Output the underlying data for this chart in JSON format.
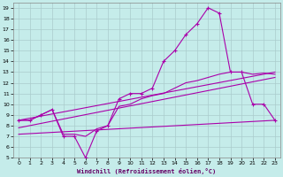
{
  "xlabel": "Windchill (Refroidissement éolien,°C)",
  "background_color": "#c5ecea",
  "grid_color": "#aacccc",
  "line_color": "#aa00aa",
  "xlim": [
    -0.5,
    23.5
  ],
  "ylim": [
    5,
    19.5
  ],
  "xticks": [
    0,
    1,
    2,
    3,
    4,
    5,
    6,
    7,
    8,
    9,
    10,
    11,
    12,
    13,
    14,
    15,
    16,
    17,
    18,
    19,
    20,
    21,
    22,
    23
  ],
  "yticks": [
    5,
    6,
    7,
    8,
    9,
    10,
    11,
    12,
    13,
    14,
    15,
    16,
    17,
    18,
    19
  ],
  "line1_x": [
    0,
    1,
    2,
    3,
    4,
    5,
    6,
    7,
    8,
    9,
    10,
    11,
    12,
    13,
    14,
    15,
    16,
    17,
    18,
    19,
    20,
    21,
    22,
    23
  ],
  "line1_y": [
    8.5,
    8.5,
    9.0,
    9.5,
    7.0,
    7.0,
    5.0,
    7.5,
    8.0,
    10.5,
    11.0,
    11.0,
    11.5,
    14.0,
    15.0,
    16.5,
    17.5,
    19.0,
    18.5,
    13.0,
    13.0,
    10.0,
    10.0,
    8.5
  ],
  "line2_x": [
    0,
    1,
    2,
    3,
    4,
    5,
    6,
    7,
    8,
    9,
    10,
    11,
    12,
    13,
    14,
    15,
    16,
    17,
    18,
    19,
    20,
    21,
    22,
    23
  ],
  "line2_y": [
    8.5,
    8.5,
    9.0,
    9.5,
    7.2,
    7.2,
    7.0,
    7.7,
    8.0,
    9.8,
    10.0,
    10.5,
    10.8,
    11.0,
    11.5,
    12.0,
    12.2,
    12.5,
    12.8,
    13.0,
    13.0,
    12.8,
    12.9,
    12.8
  ],
  "line3_x": [
    0,
    23
  ],
  "line3_y": [
    8.5,
    13.0
  ],
  "line4_x": [
    0,
    23
  ],
  "line4_y": [
    7.8,
    12.5
  ],
  "line5_x": [
    0,
    23
  ],
  "line5_y": [
    7.2,
    8.5
  ]
}
